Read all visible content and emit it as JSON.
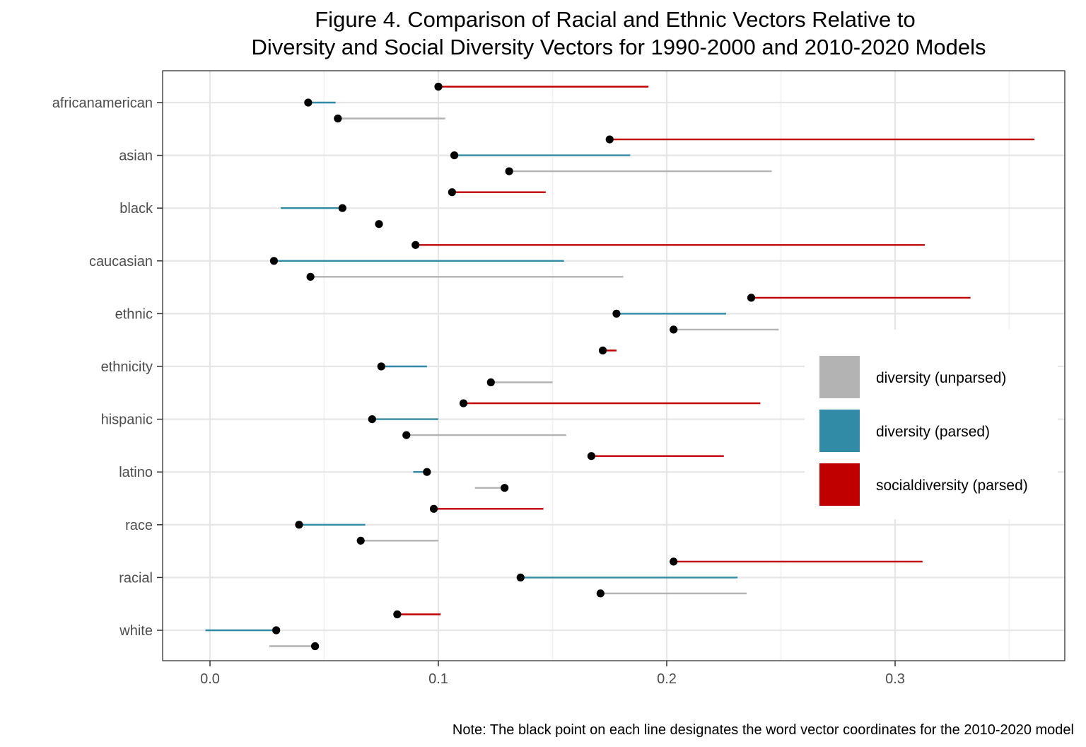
{
  "chart_data": {
    "type": "dumbbell",
    "title_lines": [
      "Figure 4. Comparison of Racial and Ethnic Vectors Relative to",
      "Diversity and Social Diversity Vectors for 1990-2000 and 2010-2020 Models"
    ],
    "note": "Note: The black point on each line designates the word vector coordinates for the 2010-2020 model",
    "xlim": [
      -0.02,
      0.38
    ],
    "x_ticks": [
      {
        "value": 0.0,
        "label": "0.0"
      },
      {
        "value": 0.1,
        "label": "0.1"
      },
      {
        "value": 0.2,
        "label": "0.2"
      },
      {
        "value": 0.3,
        "label": "0.3"
      }
    ],
    "grid": true,
    "legend_position": "right",
    "categories": [
      "africanamerican",
      "asian",
      "black",
      "caucasian",
      "ethnic",
      "ethnicity",
      "hispanic",
      "latino",
      "race",
      "racial",
      "white"
    ],
    "series": [
      {
        "name": "diversity (unparsed)",
        "color": "#b3b3b3",
        "start": [
          0.103,
          0.246,
          0.074,
          0.181,
          0.249,
          0.15,
          0.156,
          0.116,
          0.1,
          0.235,
          0.026
        ],
        "end": [
          0.056,
          0.131,
          0.074,
          0.044,
          0.203,
          0.123,
          0.086,
          0.129,
          0.066,
          0.171,
          0.046
        ]
      },
      {
        "name": "diversity (parsed)",
        "color": "#318ba6",
        "start": [
          0.055,
          0.184,
          0.031,
          0.155,
          0.226,
          0.095,
          0.1,
          0.089,
          0.068,
          0.231,
          -0.002
        ],
        "end": [
          0.043,
          0.107,
          0.058,
          0.028,
          0.178,
          0.075,
          0.071,
          0.095,
          0.039,
          0.136,
          0.029
        ]
      },
      {
        "name": "socialdiversity (parsed)",
        "color": "#c00000",
        "start": [
          0.192,
          0.361,
          0.147,
          0.313,
          0.333,
          0.178,
          0.241,
          0.225,
          0.146,
          0.312,
          0.101
        ],
        "end": [
          0.1,
          0.175,
          0.106,
          0.09,
          0.237,
          0.172,
          0.111,
          0.167,
          0.098,
          0.203,
          0.082
        ]
      }
    ]
  }
}
